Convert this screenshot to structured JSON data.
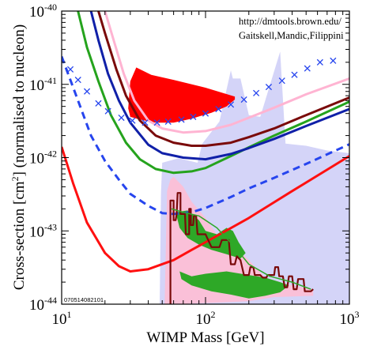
{
  "credit": {
    "line1": "http://dmtools.brown.edu/",
    "line2": "Gaitskell,Mandic,Filippini"
  },
  "stamp": "070514082101",
  "chart_data": {
    "type": "line",
    "xlabel": "WIMP Mass [GeV]",
    "ylabel_main": "Cross-section [cm",
    "ylabel_sup": "2",
    "ylabel_tail": "] (normalised to nucleon)",
    "xscale": "log",
    "yscale": "log",
    "xlim": [
      10,
      1000
    ],
    "ylim": [
      1e-44,
      1e-40
    ],
    "x_ticks": [
      {
        "value": 10,
        "base": "10",
        "exp": "1"
      },
      {
        "value": 100,
        "base": "10",
        "exp": "2"
      },
      {
        "value": 1000,
        "base": "10",
        "exp": "3"
      }
    ],
    "y_ticks": [
      {
        "value": 1e-40,
        "base": "10",
        "exp": "-40"
      },
      {
        "value": 1e-41,
        "base": "10",
        "exp": "-41"
      },
      {
        "value": 1e-42,
        "base": "10",
        "exp": "-42"
      },
      {
        "value": 1e-43,
        "base": "10",
        "exp": "-43"
      },
      {
        "value": 1e-44,
        "base": "10",
        "exp": "-44"
      }
    ],
    "regions": [
      {
        "fill": "#d4d4f8",
        "points": [
          [
            48,
            1e-44
          ],
          [
            49,
            3.2e-43
          ],
          [
            50,
            8.5e-43
          ],
          [
            65,
            9.8e-43
          ],
          [
            88,
            8.5e-43
          ],
          [
            95,
            1.55e-42
          ],
          [
            125,
            3.1e-42
          ],
          [
            150,
            1.55e-41
          ],
          [
            155,
            1.2e-41
          ],
          [
            175,
            1.2e-41
          ],
          [
            200,
            3.8e-42
          ],
          [
            240,
            3.6e-42
          ],
          [
            330,
            2.8e-41
          ],
          [
            360,
            1.55e-42
          ],
          [
            500,
            1.45e-42
          ],
          [
            700,
            1.25e-42
          ],
          [
            1000,
            1.15e-42
          ],
          [
            1000,
            1e-44
          ]
        ]
      },
      {
        "fill": "#fac0d8",
        "points": [
          [
            52,
            1e-44
          ],
          [
            54,
            3.5e-43
          ],
          [
            57,
            5e-43
          ],
          [
            60,
            5.5e-43
          ],
          [
            70,
            4e-43
          ],
          [
            80,
            2.5e-43
          ],
          [
            100,
            1.5e-43
          ],
          [
            130,
            7e-44
          ],
          [
            160,
            6e-44
          ],
          [
            200,
            4e-44
          ],
          [
            260,
            2.3e-44
          ],
          [
            400,
            1.8e-44
          ],
          [
            560,
            1.6e-44
          ],
          [
            560,
            1.3e-44
          ],
          [
            300,
            1.25e-44
          ],
          [
            200,
            1.1e-44
          ],
          [
            120,
            1.05e-44
          ],
          [
            80,
            1.02e-44
          ],
          [
            60,
            1e-44
          ]
        ]
      },
      {
        "fill": "#2ea827",
        "points": [
          [
            62,
            1.8e-43
          ],
          [
            75,
            1.9e-43
          ],
          [
            90,
            1.4e-43
          ],
          [
            100,
            1e-43
          ],
          [
            120,
            9e-44
          ],
          [
            140,
            1.1e-43
          ],
          [
            155,
            1e-43
          ],
          [
            170,
            7e-44
          ],
          [
            190,
            5e-44
          ],
          [
            175,
            4.2e-44
          ],
          [
            140,
            4.8e-44
          ],
          [
            110,
            5.5e-44
          ],
          [
            90,
            6.5e-44
          ],
          [
            75,
            8e-44
          ],
          [
            66,
            1.1e-43
          ]
        ]
      },
      {
        "fill": "#2ea827",
        "points": [
          [
            66,
            2.8e-44
          ],
          [
            80,
            2.4e-44
          ],
          [
            100,
            2.6e-44
          ],
          [
            140,
            2.8e-44
          ],
          [
            200,
            2.5e-44
          ],
          [
            260,
            2.3e-44
          ],
          [
            330,
            2e-44
          ],
          [
            380,
            1.8e-44
          ],
          [
            330,
            1.45e-44
          ],
          [
            260,
            1.3e-44
          ],
          [
            200,
            1.2e-44
          ],
          [
            150,
            1.35e-44
          ],
          [
            110,
            1.5e-44
          ],
          [
            80,
            1.8e-44
          ],
          [
            68,
            2.2e-44
          ]
        ]
      },
      {
        "fill": "#ff0000",
        "points": [
          [
            29,
            4.7e-42
          ],
          [
            30,
            1.1e-41
          ],
          [
            33,
            1.7e-41
          ],
          [
            42,
            1.35e-41
          ],
          [
            60,
            1.15e-41
          ],
          [
            100,
            9e-42
          ],
          [
            160,
            6.8e-42
          ],
          [
            160,
            6.2e-42
          ],
          [
            140,
            5e-42
          ],
          [
            110,
            4.1e-42
          ],
          [
            80,
            3.4e-42
          ],
          [
            60,
            3e-42
          ],
          [
            45,
            3e-42
          ],
          [
            35,
            3.3e-42
          ],
          [
            30,
            3.6e-42
          ]
        ]
      }
    ],
    "series": [
      {
        "color": "#ff1010",
        "width": 3,
        "dash": "",
        "points": [
          [
            10,
            1.4e-42
          ],
          [
            12,
            4.5e-43
          ],
          [
            15,
            1.3e-43
          ],
          [
            20,
            5e-44
          ],
          [
            25,
            3.3e-44
          ],
          [
            30,
            2.8e-44
          ],
          [
            40,
            3e-44
          ],
          [
            60,
            4e-44
          ],
          [
            80,
            5.5e-44
          ],
          [
            100,
            7e-44
          ],
          [
            200,
            1.5e-43
          ],
          [
            400,
            3.5e-43
          ],
          [
            1000,
            1.05e-42
          ]
        ]
      },
      {
        "color": "#2645ee",
        "width": 3,
        "dash": "9,6",
        "points": [
          [
            10,
            2.4e-41
          ],
          [
            13,
            6e-42
          ],
          [
            16,
            2e-42
          ],
          [
            20,
            9e-43
          ],
          [
            25,
            5e-43
          ],
          [
            30,
            3.2e-43
          ],
          [
            40,
            2.2e-43
          ],
          [
            50,
            1.75e-43
          ],
          [
            60,
            1.7e-43
          ],
          [
            80,
            1.8e-43
          ],
          [
            100,
            2.05e-43
          ],
          [
            150,
            2.9e-43
          ],
          [
            200,
            3.8e-43
          ],
          [
            300,
            5.3e-43
          ],
          [
            500,
            8.2e-43
          ],
          [
            1000,
            1.52e-42
          ]
        ]
      },
      {
        "color": "#25a31d",
        "width": 3,
        "dash": "",
        "points": [
          [
            13,
            1e-40
          ],
          [
            15,
            3.2e-41
          ],
          [
            18,
            1.1e-41
          ],
          [
            22,
            3.8e-42
          ],
          [
            28,
            1.6e-42
          ],
          [
            35,
            9.5e-43
          ],
          [
            45,
            7e-43
          ],
          [
            60,
            6.2e-43
          ],
          [
            80,
            6.5e-43
          ],
          [
            100,
            7.2e-43
          ],
          [
            150,
            1.05e-42
          ],
          [
            200,
            1.38e-42
          ],
          [
            300,
            2e-42
          ],
          [
            500,
            3.1e-42
          ],
          [
            1000,
            5.8e-42
          ]
        ]
      },
      {
        "color": "#1020a8",
        "width": 3,
        "dash": "",
        "points": [
          [
            16,
            1e-40
          ],
          [
            18,
            4e-41
          ],
          [
            21,
            1.4e-41
          ],
          [
            25,
            6e-42
          ],
          [
            30,
            3e-42
          ],
          [
            40,
            1.5e-42
          ],
          [
            50,
            1.15e-42
          ],
          [
            70,
            1e-42
          ],
          [
            100,
            9.5e-43
          ],
          [
            150,
            1.12e-42
          ],
          [
            200,
            1.35e-42
          ],
          [
            300,
            1.8e-42
          ],
          [
            500,
            2.7e-42
          ],
          [
            1000,
            4.6e-42
          ]
        ]
      },
      {
        "color": "#7a0a0a",
        "width": 3,
        "dash": "",
        "points": [
          [
            18,
            1e-40
          ],
          [
            20,
            5e-41
          ],
          [
            24,
            1.6e-41
          ],
          [
            28,
            7e-42
          ],
          [
            35,
            3.2e-42
          ],
          [
            45,
            2e-42
          ],
          [
            60,
            1.6e-42
          ],
          [
            80,
            1.45e-42
          ],
          [
            100,
            1.45e-42
          ],
          [
            150,
            1.6e-42
          ],
          [
            200,
            1.9e-42
          ],
          [
            300,
            2.5e-42
          ],
          [
            500,
            3.8e-42
          ],
          [
            1000,
            6.6e-42
          ]
        ]
      },
      {
        "color": "#ffb4d2",
        "width": 3,
        "dash": "",
        "points": [
          [
            20,
            1e-40
          ],
          [
            23,
            4e-41
          ],
          [
            27,
            1.4e-41
          ],
          [
            32,
            6e-42
          ],
          [
            40,
            3.2e-42
          ],
          [
            50,
            2.5e-42
          ],
          [
            70,
            2.2e-42
          ],
          [
            100,
            2.3e-42
          ],
          [
            150,
            2.8e-42
          ],
          [
            200,
            3.5e-42
          ],
          [
            300,
            4.8e-42
          ],
          [
            500,
            7.3e-42
          ],
          [
            1000,
            1.2e-41
          ]
        ]
      },
      {
        "color": "#7a0a0a",
        "width": 2.2,
        "dash": "",
        "points": [
          [
            57,
            1e-44
          ],
          [
            57,
            2.6e-43
          ],
          [
            60,
            2.6e-43
          ],
          [
            60,
            1.4e-43
          ],
          [
            62,
            1.4e-43
          ],
          [
            63,
            1.7e-43
          ],
          [
            64,
            3.3e-43
          ],
          [
            67,
            3.3e-43
          ],
          [
            67,
            1.7e-43
          ],
          [
            71,
            1.7e-43
          ],
          [
            72,
            1.7e-43
          ],
          [
            73,
            9e-44
          ],
          [
            77,
            9e-44
          ],
          [
            77,
            2e-43
          ],
          [
            79,
            2e-43
          ],
          [
            79,
            1.2e-43
          ],
          [
            82,
            1.2e-43
          ],
          [
            83,
            1.6e-43
          ],
          [
            86,
            1.6e-43
          ],
          [
            88,
            9e-44
          ],
          [
            100,
            9e-44
          ],
          [
            110,
            6e-44
          ],
          [
            125,
            6e-44
          ],
          [
            130,
            7.5e-44
          ],
          [
            145,
            7.5e-44
          ],
          [
            150,
            3.5e-44
          ],
          [
            160,
            3.5e-44
          ],
          [
            165,
            4.5e-44
          ],
          [
            175,
            4e-44
          ],
          [
            185,
            2.5e-44
          ],
          [
            200,
            2.5e-44
          ],
          [
            205,
            3.2e-44
          ],
          [
            215,
            3.2e-44
          ],
          [
            220,
            2.5e-44
          ],
          [
            240,
            2.5e-44
          ],
          [
            250,
            2.3e-44
          ],
          [
            265,
            2.3e-44
          ],
          [
            270,
            2.5e-44
          ],
          [
            300,
            2.5e-44
          ],
          [
            305,
            3.2e-44
          ],
          [
            320,
            3.2e-44
          ],
          [
            325,
            2.4e-44
          ],
          [
            345,
            2.4e-44
          ],
          [
            355,
            1.7e-44
          ],
          [
            370,
            1.7e-44
          ],
          [
            380,
            2.4e-44
          ],
          [
            400,
            2.4e-44
          ],
          [
            410,
            1.6e-44
          ],
          [
            430,
            1.6e-44
          ],
          [
            440,
            2.2e-44
          ],
          [
            480,
            2.2e-44
          ],
          [
            490,
            1.5e-44
          ],
          [
            540,
            1.5e-44
          ],
          [
            560,
            1.6e-44
          ]
        ]
      },
      {
        "color": "#2ea827",
        "width": 1.5,
        "dash": "",
        "points": [
          [
            58,
            2e-43
          ],
          [
            70,
            1.8e-43
          ],
          [
            90,
            1.6e-43
          ],
          [
            120,
            1.1e-43
          ],
          [
            160,
            6e-44
          ],
          [
            200,
            3.5e-44
          ],
          [
            280,
            2.4e-44
          ],
          [
            400,
            2e-44
          ],
          [
            540,
            1.6e-44
          ]
        ]
      }
    ],
    "markers": {
      "color": "#2645ee",
      "symbol": "×",
      "points": [
        [
          11.5,
          1.6e-41
        ],
        [
          13,
          1.15e-41
        ],
        [
          15,
          8e-42
        ],
        [
          18,
          5.5e-42
        ],
        [
          21,
          4.3e-42
        ],
        [
          26,
          3.5e-42
        ],
        [
          31,
          3.2e-42
        ],
        [
          38,
          3e-42
        ],
        [
          46,
          3e-42
        ],
        [
          55,
          3.1e-42
        ],
        [
          68,
          3.3e-42
        ],
        [
          82,
          3.6e-42
        ],
        [
          100,
          4e-42
        ],
        [
          123,
          4.6e-42
        ],
        [
          150,
          5.3e-42
        ],
        [
          185,
          6.2e-42
        ],
        [
          225,
          7.6e-42
        ],
        [
          275,
          9.2e-42
        ],
        [
          340,
          1.12e-41
        ],
        [
          415,
          1.35e-41
        ],
        [
          510,
          1.65e-41
        ],
        [
          625,
          2e-41
        ],
        [
          770,
          2.1e-41
        ]
      ]
    }
  }
}
